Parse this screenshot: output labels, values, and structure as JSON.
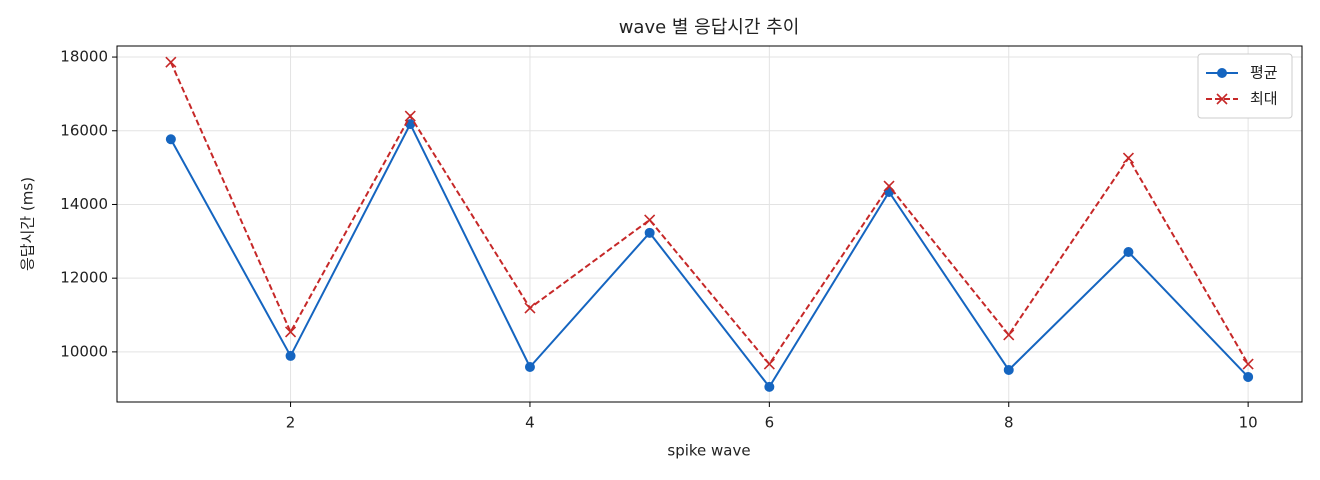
{
  "chart_data": {
    "type": "line",
    "title": "wave 별 응답시간 추이",
    "x_label": "spike wave",
    "y_label": "응답시간 (ms)",
    "x": [
      1,
      2,
      3,
      4,
      5,
      6,
      7,
      8,
      9,
      10
    ],
    "series": [
      {
        "name": "평균",
        "color": "#1565c0",
        "marker": "o",
        "linestyle": "solid",
        "values": [
          15770,
          9890,
          16180,
          9590,
          13230,
          9050,
          14340,
          9510,
          12710,
          9320
        ]
      },
      {
        "name": "최대",
        "color": "#c62828",
        "marker": "x",
        "linestyle": "dashed",
        "values": [
          17860,
          10540,
          16400,
          11190,
          13580,
          9670,
          14500,
          10460,
          15260,
          9670
        ]
      }
    ],
    "xlim": [
      0.55,
      10.45
    ],
    "ylim": [
      8640,
      18300
    ],
    "xticks": [
      2,
      4,
      6,
      8,
      10
    ],
    "yticks": [
      10000,
      12000,
      14000,
      16000,
      18000
    ],
    "grid": true,
    "legend": "upper right"
  }
}
